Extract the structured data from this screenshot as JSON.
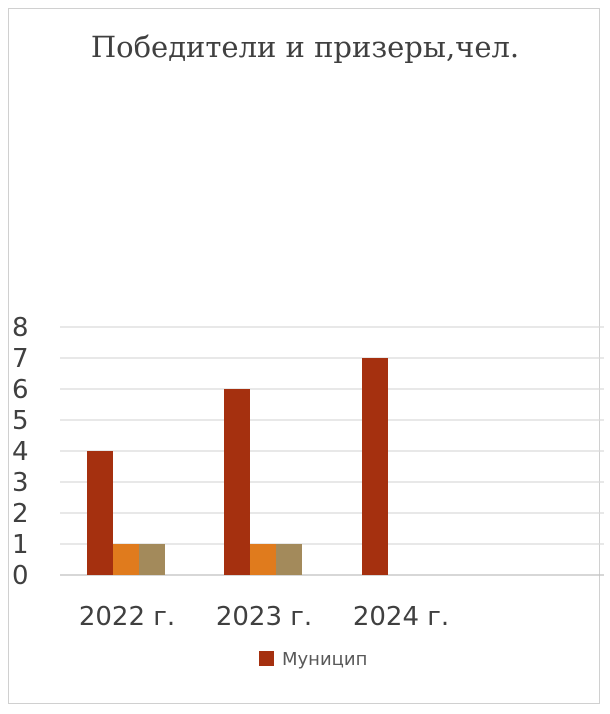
{
  "chart_data": {
    "type": "bar",
    "title": "Победители и призеры,чел.",
    "categories": [
      "2022 г.",
      "2023 г.",
      "2024 г."
    ],
    "series": [
      {
        "name": "Муницип",
        "values": [
          4,
          6,
          7
        ],
        "color": "#a5300f"
      },
      {
        "values": [
          1,
          1,
          null
        ],
        "color": "#e07b1d"
      },
      {
        "values": [
          1,
          1,
          null
        ],
        "color": "#a38a5b"
      }
    ],
    "ylim": [
      0,
      8
    ],
    "yticks": [
      0,
      1,
      2,
      3,
      4,
      5,
      6,
      7,
      8
    ],
    "grid": true,
    "legend": "bottom",
    "gridColor": "#d9d9d9",
    "axisColor": "#bfbfbf"
  }
}
